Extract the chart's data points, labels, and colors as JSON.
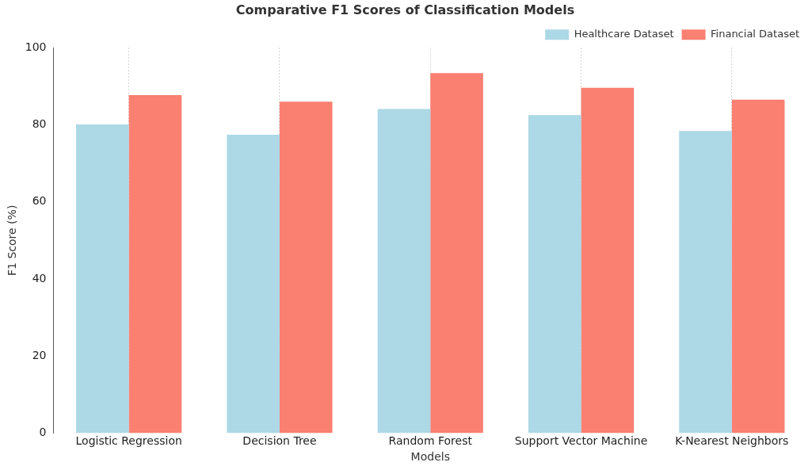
{
  "chart_data": {
    "type": "bar",
    "title": "Comparative F1 Scores of Classification Models",
    "xlabel": "Models",
    "ylabel": "F1 Score (%)",
    "categories": [
      "Logistic Regression",
      "Decision Tree",
      "Random Forest",
      "Support Vector Machine",
      "K-Nearest Neighbors"
    ],
    "series": [
      {
        "name": "Healthcare Dataset",
        "color": "#add8e6",
        "values": [
          80.1,
          77.4,
          84.1,
          82.5,
          78.4
        ]
      },
      {
        "name": "Financial Dataset",
        "color": "#fa8072",
        "values": [
          87.7,
          86.0,
          93.4,
          89.6,
          86.5
        ]
      }
    ],
    "ylim": [
      0,
      100
    ],
    "yticks": [
      0,
      20,
      40,
      60,
      80,
      100
    ],
    "grid": "x",
    "legend": "top right"
  }
}
